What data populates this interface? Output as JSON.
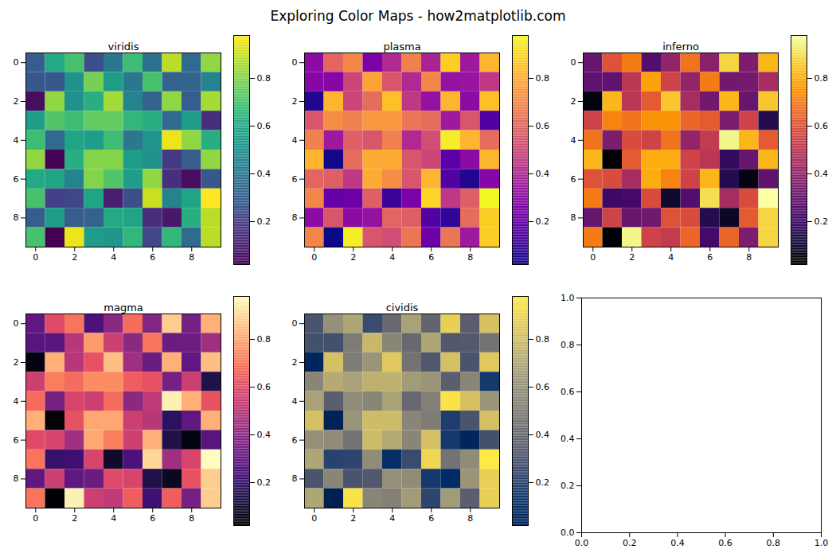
{
  "title": "Exploring Color Maps - how2matplotlib.com",
  "chart_data": [
    {
      "type": "heatmap",
      "title": "viridis",
      "color": "viridis",
      "xlim": [
        -0.5,
        9.5
      ],
      "ylim": [
        9.5,
        -0.5
      ],
      "xticks": [
        0,
        2,
        4,
        6,
        8
      ],
      "yticks": [
        0,
        2,
        4,
        6,
        8
      ],
      "cells": [
        [
          0.3,
          0.6,
          0.7,
          0.25,
          0.4,
          0.68,
          0.38,
          0.88,
          0.35,
          0.82
        ],
        [
          0.28,
          0.28,
          0.5,
          0.78,
          0.55,
          0.4,
          0.7,
          0.32,
          0.33,
          0.45
        ],
        [
          0.05,
          0.82,
          0.5,
          0.62,
          0.85,
          0.45,
          0.32,
          0.82,
          0.3,
          0.85
        ],
        [
          0.55,
          0.72,
          0.68,
          0.75,
          0.75,
          0.65,
          0.62,
          0.35,
          0.55,
          0.15
        ],
        [
          0.68,
          0.35,
          0.58,
          0.55,
          0.68,
          0.4,
          0.52,
          0.95,
          0.82,
          0.62
        ],
        [
          0.82,
          0.03,
          0.62,
          0.8,
          0.8,
          0.55,
          0.5,
          0.18,
          0.3,
          0.82
        ],
        [
          0.6,
          0.58,
          0.45,
          0.8,
          0.72,
          0.55,
          0.82,
          0.15,
          0.05,
          0.28
        ],
        [
          0.7,
          0.2,
          0.22,
          0.58,
          0.1,
          0.25,
          0.9,
          0.45,
          0.58,
          0.98
        ],
        [
          0.3,
          0.55,
          0.3,
          0.32,
          0.6,
          0.58,
          0.15,
          0.08,
          0.62,
          0.88
        ],
        [
          0.7,
          0.02,
          0.95,
          0.55,
          0.52,
          0.65,
          0.22,
          0.65,
          0.35,
          0.88
        ]
      ],
      "colorbar": {
        "range": [
          0.02,
          0.98
        ],
        "ticks": [
          0.2,
          0.4,
          0.6,
          0.8
        ]
      }
    },
    {
      "type": "heatmap",
      "title": "plasma",
      "color": "plasma",
      "xlim": [
        -0.5,
        9.5
      ],
      "ylim": [
        9.5,
        -0.5
      ],
      "xticks": [
        0,
        2,
        4,
        6,
        8
      ],
      "yticks": [
        0,
        2,
        4,
        6,
        8
      ],
      "cells": [
        [
          0.3,
          0.6,
          0.7,
          0.25,
          0.4,
          0.68,
          0.38,
          0.88,
          0.35,
          0.82
        ],
        [
          0.28,
          0.28,
          0.5,
          0.78,
          0.55,
          0.4,
          0.7,
          0.32,
          0.33,
          0.45
        ],
        [
          0.05,
          0.82,
          0.5,
          0.62,
          0.85,
          0.45,
          0.32,
          0.82,
          0.3,
          0.85
        ],
        [
          0.55,
          0.72,
          0.68,
          0.75,
          0.75,
          0.65,
          0.62,
          0.35,
          0.55,
          0.15
        ],
        [
          0.68,
          0.35,
          0.58,
          0.55,
          0.68,
          0.4,
          0.52,
          0.95,
          0.82,
          0.62
        ],
        [
          0.82,
          0.03,
          0.62,
          0.8,
          0.8,
          0.55,
          0.5,
          0.18,
          0.3,
          0.82
        ],
        [
          0.6,
          0.58,
          0.45,
          0.8,
          0.72,
          0.55,
          0.82,
          0.15,
          0.05,
          0.28
        ],
        [
          0.7,
          0.2,
          0.22,
          0.58,
          0.1,
          0.25,
          0.9,
          0.45,
          0.58,
          0.98
        ],
        [
          0.3,
          0.55,
          0.3,
          0.32,
          0.6,
          0.58,
          0.15,
          0.08,
          0.62,
          0.88
        ],
        [
          0.7,
          0.02,
          0.95,
          0.55,
          0.52,
          0.65,
          0.22,
          0.65,
          0.35,
          0.88
        ]
      ],
      "colorbar": {
        "range": [
          0.02,
          0.98
        ],
        "ticks": [
          0.2,
          0.4,
          0.6,
          0.8
        ]
      }
    },
    {
      "type": "heatmap",
      "title": "inferno",
      "color": "inferno",
      "xlim": [
        -0.5,
        9.5
      ],
      "ylim": [
        9.5,
        -0.5
      ],
      "xticks": [
        0,
        2,
        4,
        6,
        8
      ],
      "yticks": [
        0,
        2,
        4,
        6,
        8
      ],
      "cells": [
        [
          0.3,
          0.6,
          0.7,
          0.25,
          0.4,
          0.68,
          0.38,
          0.88,
          0.35,
          0.82
        ],
        [
          0.28,
          0.28,
          0.5,
          0.78,
          0.55,
          0.4,
          0.7,
          0.32,
          0.33,
          0.45
        ],
        [
          0.05,
          0.82,
          0.5,
          0.62,
          0.85,
          0.45,
          0.32,
          0.82,
          0.3,
          0.85
        ],
        [
          0.55,
          0.72,
          0.68,
          0.75,
          0.75,
          0.65,
          0.62,
          0.35,
          0.55,
          0.15
        ],
        [
          0.68,
          0.35,
          0.58,
          0.55,
          0.68,
          0.4,
          0.52,
          0.95,
          0.82,
          0.62
        ],
        [
          0.82,
          0.03,
          0.62,
          0.8,
          0.8,
          0.55,
          0.5,
          0.18,
          0.3,
          0.82
        ],
        [
          0.6,
          0.58,
          0.45,
          0.8,
          0.72,
          0.55,
          0.82,
          0.15,
          0.05,
          0.28
        ],
        [
          0.7,
          0.2,
          0.22,
          0.58,
          0.1,
          0.25,
          0.9,
          0.45,
          0.58,
          0.98
        ],
        [
          0.3,
          0.55,
          0.3,
          0.32,
          0.6,
          0.58,
          0.15,
          0.08,
          0.62,
          0.88
        ],
        [
          0.7,
          0.02,
          0.95,
          0.55,
          0.52,
          0.65,
          0.22,
          0.65,
          0.35,
          0.88
        ]
      ],
      "colorbar": {
        "range": [
          0.02,
          0.98
        ],
        "ticks": [
          0.2,
          0.4,
          0.6,
          0.8
        ]
      }
    },
    {
      "type": "heatmap",
      "title": "magma",
      "color": "magma",
      "xlim": [
        -0.5,
        9.5
      ],
      "ylim": [
        9.5,
        -0.5
      ],
      "xticks": [
        0,
        2,
        4,
        6,
        8
      ],
      "yticks": [
        0,
        2,
        4,
        6,
        8
      ],
      "cells": [
        [
          0.3,
          0.6,
          0.7,
          0.25,
          0.4,
          0.68,
          0.38,
          0.88,
          0.35,
          0.82
        ],
        [
          0.28,
          0.28,
          0.5,
          0.78,
          0.55,
          0.4,
          0.7,
          0.32,
          0.33,
          0.45
        ],
        [
          0.05,
          0.82,
          0.5,
          0.62,
          0.85,
          0.45,
          0.32,
          0.82,
          0.3,
          0.85
        ],
        [
          0.55,
          0.72,
          0.68,
          0.75,
          0.75,
          0.65,
          0.62,
          0.35,
          0.55,
          0.15
        ],
        [
          0.68,
          0.35,
          0.58,
          0.55,
          0.68,
          0.4,
          0.52,
          0.95,
          0.82,
          0.62
        ],
        [
          0.82,
          0.03,
          0.62,
          0.8,
          0.8,
          0.55,
          0.5,
          0.18,
          0.3,
          0.82
        ],
        [
          0.6,
          0.58,
          0.45,
          0.8,
          0.72,
          0.55,
          0.82,
          0.15,
          0.05,
          0.28
        ],
        [
          0.7,
          0.2,
          0.22,
          0.58,
          0.1,
          0.25,
          0.9,
          0.45,
          0.58,
          0.98
        ],
        [
          0.3,
          0.55,
          0.3,
          0.32,
          0.6,
          0.58,
          0.15,
          0.08,
          0.62,
          0.88
        ],
        [
          0.7,
          0.02,
          0.95,
          0.55,
          0.52,
          0.65,
          0.22,
          0.65,
          0.35,
          0.88
        ]
      ],
      "colorbar": {
        "range": [
          0.02,
          0.98
        ],
        "ticks": [
          0.2,
          0.4,
          0.6,
          0.8
        ]
      }
    },
    {
      "type": "heatmap",
      "title": "cividis",
      "color": "cividis",
      "xlim": [
        -0.5,
        9.5
      ],
      "ylim": [
        9.5,
        -0.5
      ],
      "xticks": [
        0,
        2,
        4,
        6,
        8
      ],
      "yticks": [
        0,
        2,
        4,
        6,
        8
      ],
      "cells": [
        [
          0.3,
          0.6,
          0.7,
          0.25,
          0.4,
          0.68,
          0.38,
          0.88,
          0.35,
          0.82
        ],
        [
          0.28,
          0.28,
          0.5,
          0.78,
          0.55,
          0.4,
          0.7,
          0.32,
          0.33,
          0.45
        ],
        [
          0.05,
          0.82,
          0.5,
          0.62,
          0.85,
          0.45,
          0.32,
          0.82,
          0.3,
          0.85
        ],
        [
          0.55,
          0.72,
          0.68,
          0.75,
          0.75,
          0.65,
          0.62,
          0.35,
          0.55,
          0.15
        ],
        [
          0.68,
          0.35,
          0.58,
          0.55,
          0.68,
          0.4,
          0.52,
          0.95,
          0.82,
          0.62
        ],
        [
          0.82,
          0.03,
          0.62,
          0.8,
          0.8,
          0.55,
          0.5,
          0.18,
          0.3,
          0.82
        ],
        [
          0.6,
          0.58,
          0.45,
          0.8,
          0.72,
          0.55,
          0.82,
          0.15,
          0.05,
          0.28
        ],
        [
          0.7,
          0.2,
          0.22,
          0.58,
          0.1,
          0.25,
          0.9,
          0.45,
          0.58,
          0.98
        ],
        [
          0.3,
          0.55,
          0.3,
          0.32,
          0.6,
          0.58,
          0.15,
          0.08,
          0.62,
          0.88
        ],
        [
          0.7,
          0.02,
          0.95,
          0.55,
          0.52,
          0.65,
          0.22,
          0.65,
          0.35,
          0.88
        ]
      ],
      "colorbar": {
        "range": [
          0.02,
          0.98
        ],
        "ticks": [
          0.2,
          0.4,
          0.6,
          0.8
        ]
      }
    },
    {
      "type": "empty",
      "xlim": [
        0,
        1
      ],
      "ylim": [
        0,
        1
      ],
      "xticks": [
        {
          "value": 0,
          "label": "0.0"
        },
        {
          "value": 0.2,
          "label": "0.2"
        },
        {
          "value": 0.4,
          "label": "0.4"
        },
        {
          "value": 0.6,
          "label": "0.6"
        },
        {
          "value": 0.8,
          "label": "0.8"
        },
        {
          "value": 1,
          "label": "1.0"
        }
      ],
      "yticks": [
        {
          "value": 0,
          "label": "0.0"
        },
        {
          "value": 0.2,
          "label": "0.2"
        },
        {
          "value": 0.4,
          "label": "0.4"
        },
        {
          "value": 0.6,
          "label": "0.6"
        },
        {
          "value": 0.8,
          "label": "0.8"
        },
        {
          "value": 1,
          "label": "1.0"
        }
      ]
    }
  ]
}
